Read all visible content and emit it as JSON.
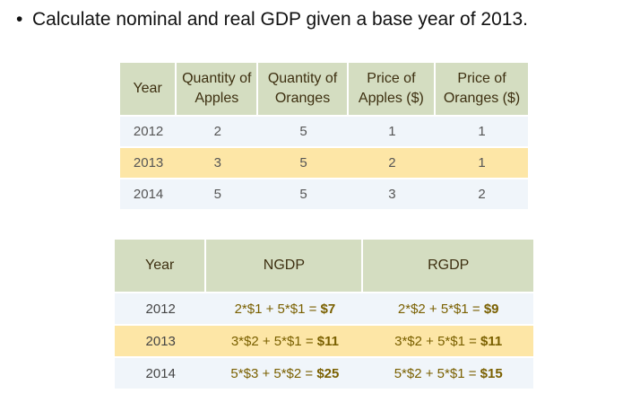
{
  "bullet": "Calculate nominal and real GDP given a base year of 2013.",
  "table1": {
    "headers": [
      "Year",
      "Quantity of Apples",
      "Quantity of Oranges",
      "Price of Apples ($)",
      "Price of Oranges ($)"
    ],
    "rows": [
      [
        "2012",
        "2",
        "5",
        "1",
        "1"
      ],
      [
        "2013",
        "3",
        "5",
        "2",
        "1"
      ],
      [
        "2014",
        "5",
        "5",
        "3",
        "2"
      ]
    ]
  },
  "table2": {
    "headers": [
      "Year",
      "NGDP",
      "RGDP"
    ],
    "rows": [
      {
        "year": "2012",
        "ngdp_expr": "2*$1 + 5*$1 = ",
        "ngdp_val": "$7",
        "rgdp_expr": "2*$2 + 5*$1 = ",
        "rgdp_val": "$9"
      },
      {
        "year": "2013",
        "ngdp_expr": "3*$2 + 5*$1 = ",
        "ngdp_val": "$11",
        "rgdp_expr": "3*$2 + 5*$1 = ",
        "rgdp_val": "$11"
      },
      {
        "year": "2014",
        "ngdp_expr": "5*$3 + 5*$2 = ",
        "ngdp_val": "$25",
        "rgdp_expr": "5*$2 + 5*$1 = ",
        "rgdp_val": "$15"
      }
    ]
  },
  "colors": {
    "header_bg": "#d4ddc1",
    "highlight_row": "#fde6a6",
    "light_row": "#f0f5fa"
  }
}
